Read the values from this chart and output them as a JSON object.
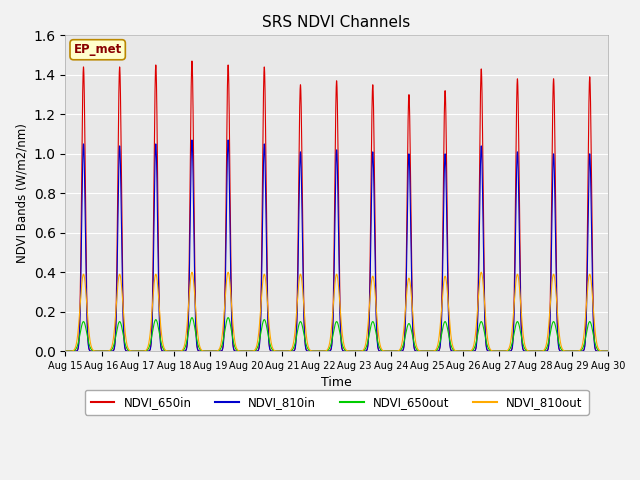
{
  "title": "SRS NDVI Channels",
  "xlabel": "Time",
  "ylabel": "NDVI Bands (W/m2/nm)",
  "ylim": [
    0,
    1.6
  ],
  "yticks": [
    0.0,
    0.2,
    0.4,
    0.6,
    0.8,
    1.0,
    1.2,
    1.4,
    1.6
  ],
  "num_days": 15,
  "day_labels": [
    "Aug 15",
    "Aug 16",
    "Aug 17",
    "Aug 18",
    "Aug 19",
    "Aug 20",
    "Aug 21",
    "Aug 22",
    "Aug 23",
    "Aug 24",
    "Aug 25",
    "Aug 26",
    "Aug 27",
    "Aug 28",
    "Aug 29",
    "Aug 30"
  ],
  "peak_650in": [
    1.44,
    1.44,
    1.45,
    1.47,
    1.45,
    1.44,
    1.35,
    1.37,
    1.35,
    1.3,
    1.32,
    1.43,
    1.38,
    1.38,
    1.39
  ],
  "peak_810in": [
    1.05,
    1.04,
    1.05,
    1.07,
    1.07,
    1.05,
    1.01,
    1.02,
    1.01,
    1.0,
    1.0,
    1.04,
    1.01,
    1.0,
    1.0
  ],
  "peak_650out": [
    0.15,
    0.15,
    0.16,
    0.17,
    0.17,
    0.16,
    0.15,
    0.15,
    0.15,
    0.14,
    0.15,
    0.15,
    0.15,
    0.15,
    0.15
  ],
  "peak_810out": [
    0.39,
    0.39,
    0.39,
    0.4,
    0.4,
    0.39,
    0.39,
    0.39,
    0.38,
    0.37,
    0.38,
    0.4,
    0.39,
    0.39,
    0.39
  ],
  "sharpness_in": 200.0,
  "sharpness_out": 60.0,
  "color_650in": "#dd0000",
  "color_810in": "#0000cc",
  "color_650out": "#00cc00",
  "color_810out": "#ffaa00",
  "bg_color": "#e8e8e8",
  "fig_bg_color": "#f2f2f2",
  "label_box_text": "EP_met",
  "label_box_facecolor": "#ffffcc",
  "label_box_edgecolor": "#bb8800",
  "label_box_textcolor": "#880000",
  "legend_labels": [
    "NDVI_650in",
    "NDVI_810in",
    "NDVI_650out",
    "NDVI_810out"
  ],
  "points_per_day": 500
}
